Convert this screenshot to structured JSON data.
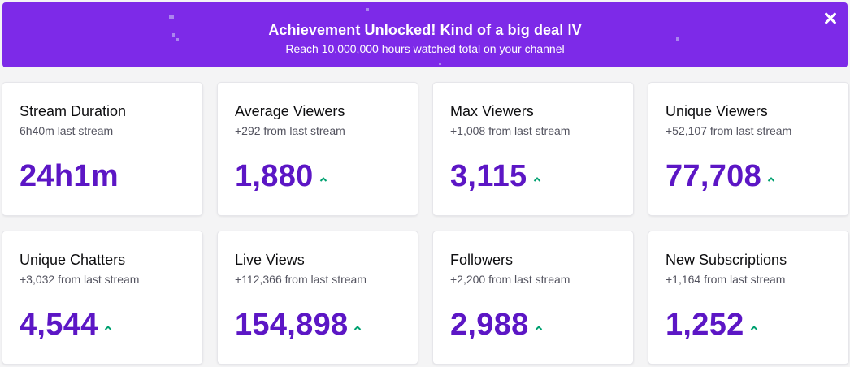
{
  "banner": {
    "title": "Achievement Unlocked! Kind of a big deal IV",
    "subtitle": "Reach 10,000,000 hours watched total on your channel",
    "background_color": "#7d2ae8",
    "close_icon": "close-icon"
  },
  "colors": {
    "value": "#5c16c5",
    "trend_up": "#00a170"
  },
  "cards": [
    {
      "label": "Stream Duration",
      "delta": "6h40m last stream",
      "value": "24h1m",
      "trend": "none"
    },
    {
      "label": "Average Viewers",
      "delta": "+292 from last stream",
      "value": "1,880",
      "trend": "up"
    },
    {
      "label": "Max Viewers",
      "delta": "+1,008 from last stream",
      "value": "3,115",
      "trend": "up"
    },
    {
      "label": "Unique Viewers",
      "delta": "+52,107 from last stream",
      "value": "77,708",
      "trend": "up"
    },
    {
      "label": "Unique Chatters",
      "delta": "+3,032 from last stream",
      "value": "4,544",
      "trend": "up"
    },
    {
      "label": "Live Views",
      "delta": "+112,366 from last stream",
      "value": "154,898",
      "trend": "up"
    },
    {
      "label": "Followers",
      "delta": "+2,200 from last stream",
      "value": "2,988",
      "trend": "up"
    },
    {
      "label": "New Subscriptions",
      "delta": "+1,164 from last stream",
      "value": "1,252",
      "trend": "up"
    }
  ]
}
